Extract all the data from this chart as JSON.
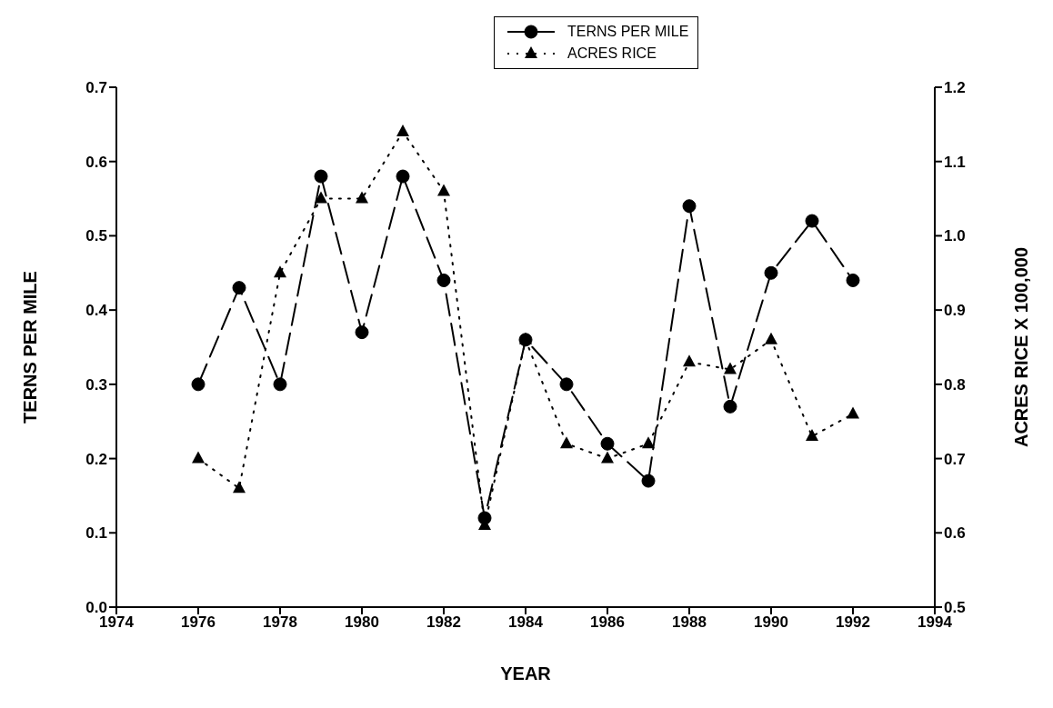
{
  "chart_data": {
    "type": "line",
    "xlabel": "YEAR",
    "ylabel": "TERNS PER MILE",
    "y2label": "ACRES RICE X 100,000",
    "x": [
      1976,
      1977,
      1978,
      1979,
      1980,
      1981,
      1982,
      1983,
      1984,
      1985,
      1986,
      1987,
      1988,
      1989,
      1990,
      1991,
      1992
    ],
    "xlim": [
      1974,
      1994
    ],
    "xticks": [
      1974,
      1976,
      1978,
      1980,
      1982,
      1984,
      1986,
      1988,
      1990,
      1992,
      1994
    ],
    "ylim": [
      0,
      0.7
    ],
    "yticks": [
      {
        "value": 0,
        "label": "0.0"
      },
      0.1,
      0.2,
      0.3,
      0.4,
      0.5,
      0.6,
      0.7
    ],
    "y2lim": [
      0.5,
      1.2
    ],
    "y2ticks": [
      0.5,
      0.6,
      0.7,
      0.8,
      0.9,
      {
        "value": 1,
        "label": "1.0"
      },
      1.1,
      1.2
    ],
    "grid": false,
    "legend": "top",
    "series": [
      {
        "name": "TERNS PER MILE",
        "color": "#000000",
        "marker": "circle",
        "line_style": "dashed",
        "values": [
          0.3,
          0.43,
          0.3,
          0.58,
          0.37,
          0.58,
          0.44,
          0.12,
          0.36,
          0.3,
          0.22,
          0.17,
          0.54,
          0.27,
          0.45,
          0.52,
          0.44
        ]
      },
      {
        "name": "ACRES RICE",
        "color": "#000000",
        "marker": "triangle",
        "line_style": "dotted",
        "axis": "y2",
        "values": [
          0.7,
          0.66,
          0.95,
          1.05,
          1.05,
          1.14,
          1.06,
          0.61,
          0.86,
          0.72,
          0.7,
          0.72,
          0.83,
          0.82,
          0.86,
          0.73,
          0.76
        ]
      }
    ]
  }
}
